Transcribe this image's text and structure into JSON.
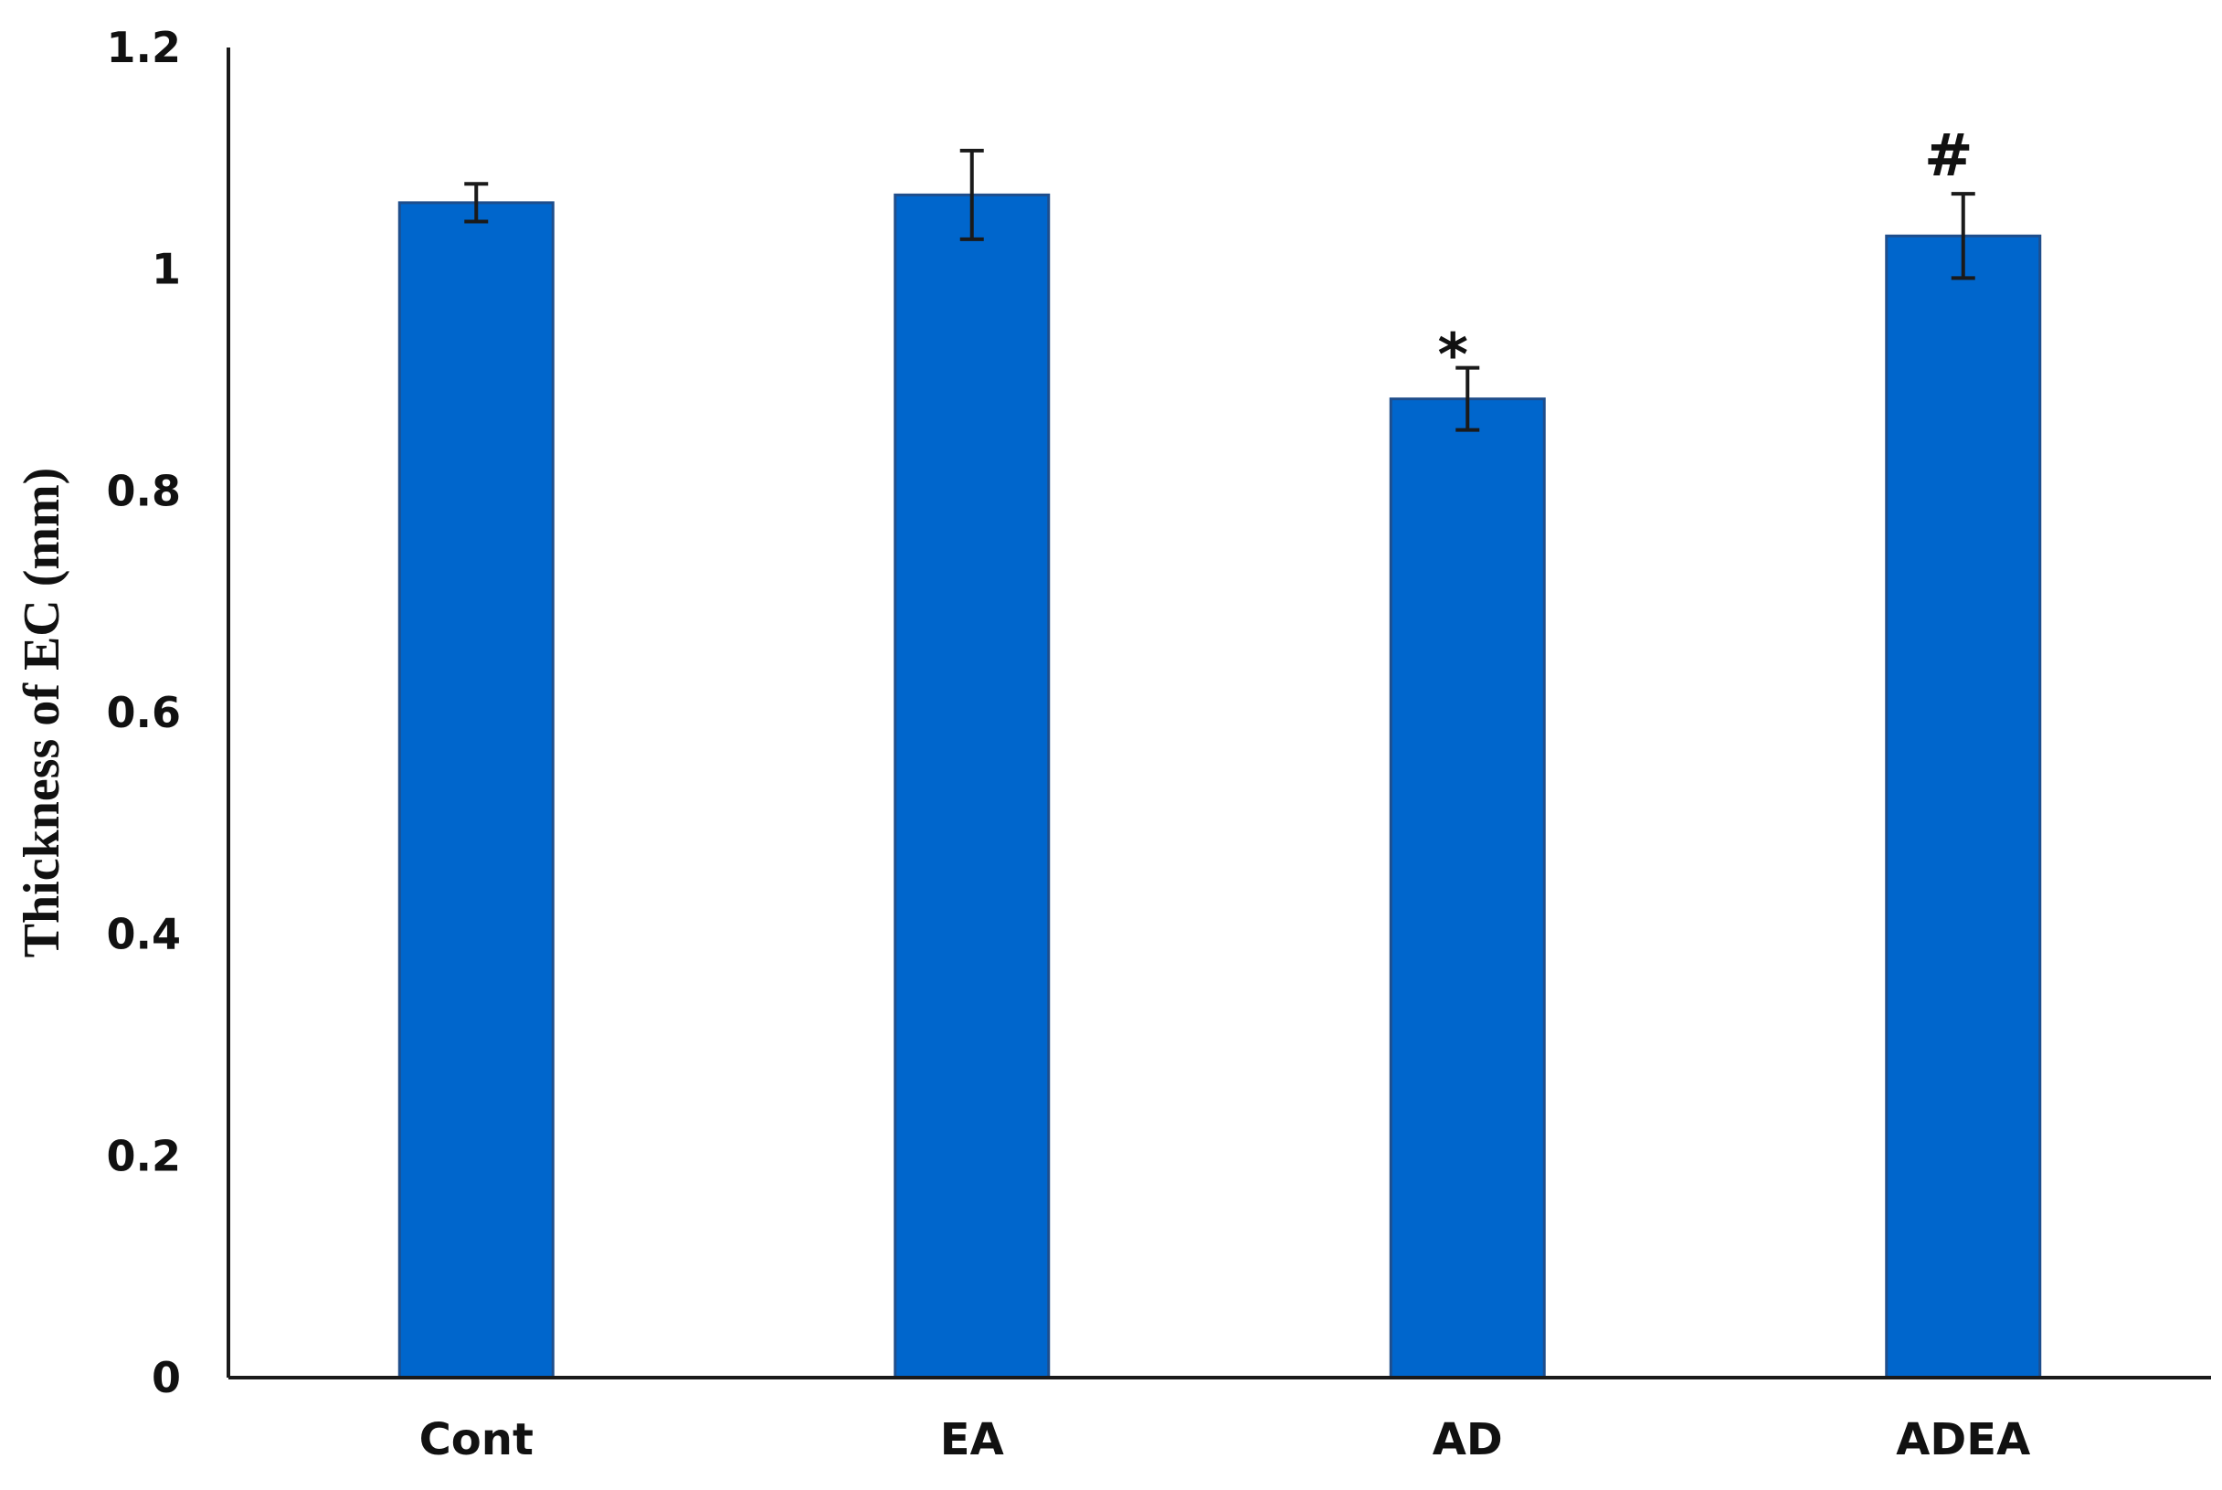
{
  "chart_data": {
    "type": "bar",
    "title": "",
    "xlabel": "",
    "ylabel": "Thickness of EC   (mm)",
    "ylim": [
      0,
      1.2
    ],
    "yticks": [
      0,
      0.2,
      0.4,
      0.6,
      0.8,
      1,
      1.2
    ],
    "ytick_labels": [
      "0",
      "0.2",
      "0.4",
      "0.6",
      "0.8",
      "1",
      "1.2"
    ],
    "categories": [
      "Cont",
      "EA",
      "AD",
      "ADEA"
    ],
    "values": [
      1.06,
      1.067,
      0.883,
      1.03
    ],
    "errors": [
      0.017,
      0.04,
      0.028,
      0.038
    ],
    "annotations": [
      "",
      "",
      "*",
      "#"
    ],
    "bar_color": "#0066CC",
    "bar_edge_color": "#1F4E8C",
    "grid": false,
    "legend": "none"
  }
}
